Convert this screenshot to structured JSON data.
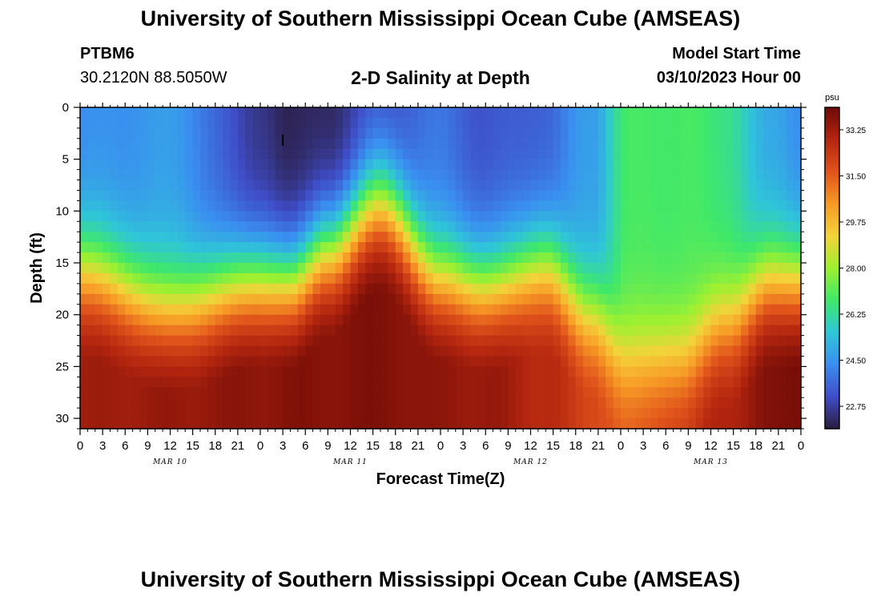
{
  "page": {
    "title": "University of Southern Mississippi Ocean Cube (AMSEAS)",
    "title_repeat": "University of Southern Mississippi Ocean Cube (AMSEAS)",
    "station_id": "PTBM6",
    "station_coords": "30.2120N  88.5050W",
    "chart_title": "2-D Salinity at Depth",
    "model_start_label": "Model Start Time",
    "model_start_value": "03/10/2023 Hour 00"
  },
  "chart_data": {
    "type": "heatmap",
    "title": "2-D Salinity at Depth",
    "xlabel": "Forecast Time(Z)",
    "ylabel": "Depth (ft)",
    "x_range_hours": [
      0,
      96
    ],
    "y_range_ft": [
      0,
      31
    ],
    "x_tick_labels": [
      "0",
      "3",
      "6",
      "9",
      "12",
      "15",
      "18",
      "21",
      "0",
      "3",
      "6",
      "9",
      "12",
      "15",
      "18",
      "21",
      "0",
      "3",
      "6",
      "9",
      "12",
      "15",
      "18",
      "21",
      "0",
      "3",
      "6",
      "9",
      "12",
      "15",
      "18",
      "21",
      "0"
    ],
    "x_tick_step_hours": 3,
    "y_ticks": [
      0,
      5,
      10,
      15,
      20,
      25,
      30
    ],
    "date_labels": [
      {
        "label": "MAR 10",
        "hour": 12
      },
      {
        "label": "MAR 11",
        "hour": 36
      },
      {
        "label": "MAR 12",
        "hour": 60
      },
      {
        "label": "MAR 13",
        "hour": 84
      }
    ],
    "colorbar": {
      "unit": "psu",
      "min": 21.9,
      "max": 34.1,
      "ticks": [
        "33.25",
        "31.50",
        "29.75",
        "28.00",
        "26.25",
        "24.50",
        "22.75"
      ],
      "colors": [
        "#2a1b3d",
        "#3f4ec8",
        "#3a8ef0",
        "#2fc6d8",
        "#3fe86a",
        "#9ef030",
        "#f4d23a",
        "#f79a26",
        "#e0531b",
        "#b4260f",
        "#6e0a07"
      ]
    },
    "surface_salinity_profile": {
      "hours": [
        0,
        12,
        24,
        28,
        33,
        40,
        48,
        54,
        62,
        68,
        73,
        80,
        86,
        92,
        96
      ],
      "surface": [
        24.3,
        24.6,
        22.6,
        22.0,
        22.2,
        23.1,
        23.8,
        23.2,
        23.5,
        24.7,
        26.8,
        26.9,
        26.5,
        24.8,
        24.4
      ],
      "mixed_layer_depth_ft": [
        15.5,
        19.0,
        16.5,
        16.5,
        13.5,
        9.0,
        16.0,
        17.0,
        15.0,
        19.5,
        24.0,
        24.0,
        20.5,
        16.5,
        16.5
      ],
      "bottom": [
        33.2,
        33.4,
        33.6,
        33.7,
        33.7,
        33.8,
        33.5,
        33.4,
        32.8,
        32.0,
        31.5,
        32.3,
        33.0,
        33.7,
        34.0
      ]
    },
    "marker": {
      "label": "|",
      "hour": 27,
      "depth_ft": 3
    }
  }
}
